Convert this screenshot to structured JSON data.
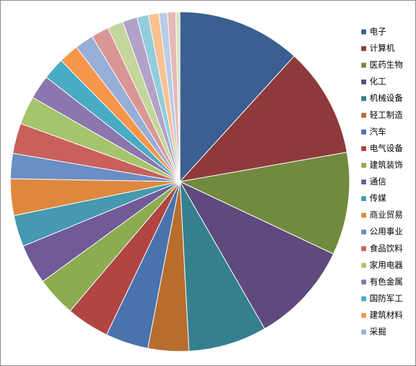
{
  "chart_data": {
    "type": "pie",
    "categories": [
      "电子",
      "计算机",
      "医药生物",
      "化工",
      "机械设备",
      "轻工制造",
      "汽车",
      "电气设备",
      "建筑装饰",
      "通信",
      "传媒",
      "商业贸易",
      "公用事业",
      "食品饮料",
      "家用电器",
      "有色金属",
      "国防军工",
      "建筑材料",
      "采掘",
      null,
      null,
      null,
      null,
      null,
      null,
      null,
      null
    ],
    "values": [
      11.8,
      10.5,
      9.8,
      9.7,
      7.5,
      3.9,
      4.1,
      4.1,
      3.8,
      3.8,
      3.0,
      3.5,
      2.4,
      2.9,
      2.7,
      2.3,
      2.1,
      1.9,
      1.8,
      1.7,
      1.5,
      1.4,
      1.1,
      1.0,
      0.8,
      0.8,
      0.4
    ],
    "colors": [
      "#3b5f91",
      "#8f3a3a",
      "#728a40",
      "#5e4a7c",
      "#35808f",
      "#b86d2f",
      "#4a72ad",
      "#b04542",
      "#8cac50",
      "#715a98",
      "#4699b0",
      "#de883e",
      "#6a8ec6",
      "#c9605c",
      "#a6c46b",
      "#8b76ae",
      "#4aabc5",
      "#f7964a",
      "#97aed6",
      "#d99694",
      "#c3d69b",
      "#b2a2c7",
      "#93cddd",
      "#fac090",
      "#b9cde5",
      "#e6b9b8",
      "#d7e4bd"
    ],
    "legend": "right"
  }
}
